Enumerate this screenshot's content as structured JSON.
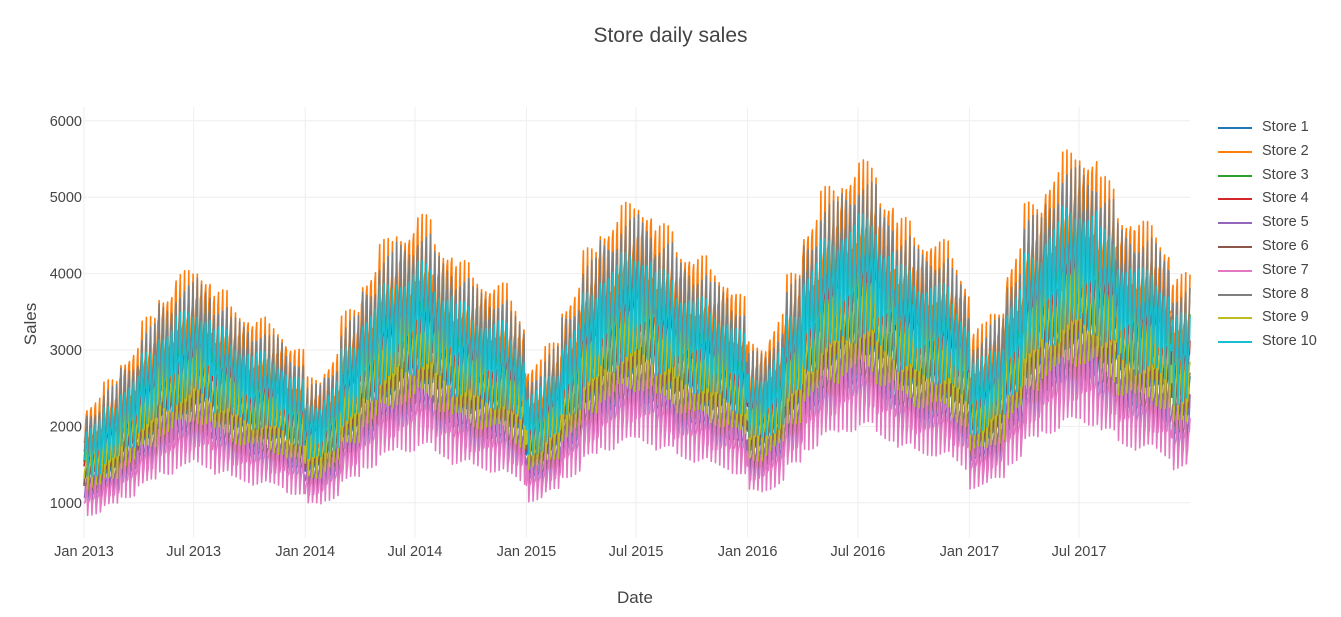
{
  "chart_data": {
    "type": "line",
    "title": "Store daily sales",
    "xlabel": "Date",
    "ylabel": "Sales",
    "xlim": [
      "2013-01-01",
      "2017-12-31"
    ],
    "ylim": [
      540,
      6180
    ],
    "grid": true,
    "legend_position": "right",
    "x_ticks": [
      "2013-01-01",
      "2013-07-01",
      "2014-01-01",
      "2014-07-01",
      "2015-01-01",
      "2015-07-01",
      "2016-01-01",
      "2016-07-01",
      "2017-01-01",
      "2017-07-01"
    ],
    "x_tick_labels": [
      "Jan 2013",
      "Jul 2013",
      "Jan 2014",
      "Jul 2014",
      "Jan 2015",
      "Jul 2015",
      "Jan 2016",
      "Jul 2016",
      "Jan 2017",
      "Jul 2017"
    ],
    "y_ticks": [
      1000,
      2000,
      3000,
      4000,
      5000,
      6000
    ],
    "y_tick_labels": [
      "1000",
      "2000",
      "3000",
      "4000",
      "5000",
      "6000"
    ],
    "series": [
      {
        "name": "Store 1",
        "color": "#1f77b4",
        "level": 0.78
      },
      {
        "name": "Store 2",
        "color": "#ff7f0e",
        "level": 1.11
      },
      {
        "name": "Store 3",
        "color": "#2ca02c",
        "level": 0.99
      },
      {
        "name": "Store 4",
        "color": "#d62728",
        "level": 0.91
      },
      {
        "name": "Store 5",
        "color": "#9467bd",
        "level": 0.67
      },
      {
        "name": "Store 6",
        "color": "#8c564b",
        "level": 0.785
      },
      {
        "name": "Store 7",
        "color": "#e377c2",
        "level": 0.605
      },
      {
        "name": "Store 8",
        "color": "#7f7f7f",
        "level": 1.06
      },
      {
        "name": "Store 9",
        "color": "#bcbd22",
        "level": 0.835
      },
      {
        "name": "Store 10",
        "color": "#17becf",
        "level": 0.965
      }
    ],
    "monthly_base": [
      {
        "month": "2013-01",
        "value": 1680
      },
      {
        "month": "2013-02",
        "value": 1860
      },
      {
        "month": "2013-03",
        "value": 2120
      },
      {
        "month": "2013-04",
        "value": 2430
      },
      {
        "month": "2013-05",
        "value": 2750
      },
      {
        "month": "2013-06",
        "value": 2900
      },
      {
        "month": "2013-07",
        "value": 3010
      },
      {
        "month": "2013-08",
        "value": 2780
      },
      {
        "month": "2013-09",
        "value": 2600
      },
      {
        "month": "2013-10",
        "value": 2500
      },
      {
        "month": "2013-11",
        "value": 2430
      },
      {
        "month": "2013-12",
        "value": 2300
      },
      {
        "month": "2014-01",
        "value": 1910
      },
      {
        "month": "2014-02",
        "value": 2050
      },
      {
        "month": "2014-03",
        "value": 2500
      },
      {
        "month": "2014-04",
        "value": 2900
      },
      {
        "month": "2014-05",
        "value": 3200
      },
      {
        "month": "2014-06",
        "value": 3350
      },
      {
        "month": "2014-07",
        "value": 3500
      },
      {
        "month": "2014-08",
        "value": 3250
      },
      {
        "month": "2014-09",
        "value": 3050
      },
      {
        "month": "2014-10",
        "value": 2900
      },
      {
        "month": "2014-11",
        "value": 2850
      },
      {
        "month": "2014-12",
        "value": 2700
      },
      {
        "month": "2015-01",
        "value": 2050
      },
      {
        "month": "2015-02",
        "value": 2200
      },
      {
        "month": "2015-03",
        "value": 2650
      },
      {
        "month": "2015-04",
        "value": 3100
      },
      {
        "month": "2015-05",
        "value": 3400
      },
      {
        "month": "2015-06",
        "value": 3550
      },
      {
        "month": "2015-07",
        "value": 3650
      },
      {
        "month": "2015-08",
        "value": 3400
      },
      {
        "month": "2015-09",
        "value": 3200
      },
      {
        "month": "2015-10",
        "value": 3100
      },
      {
        "month": "2015-11",
        "value": 2950
      },
      {
        "month": "2015-12",
        "value": 2850
      },
      {
        "month": "2016-01",
        "value": 2250
      },
      {
        "month": "2016-02",
        "value": 2350
      },
      {
        "month": "2016-03",
        "value": 2850
      },
      {
        "month": "2016-04",
        "value": 3400
      },
      {
        "month": "2016-05",
        "value": 3700
      },
      {
        "month": "2016-06",
        "value": 3900
      },
      {
        "month": "2016-07",
        "value": 4000
      },
      {
        "month": "2016-08",
        "value": 3750
      },
      {
        "month": "2016-09",
        "value": 3450
      },
      {
        "month": "2016-10",
        "value": 3300
      },
      {
        "month": "2016-11",
        "value": 3250
      },
      {
        "month": "2016-12",
        "value": 3100
      },
      {
        "month": "2017-01",
        "value": 2400
      },
      {
        "month": "2017-02",
        "value": 2500
      },
      {
        "month": "2017-03",
        "value": 3000
      },
      {
        "month": "2017-04",
        "value": 3550
      },
      {
        "month": "2017-05",
        "value": 3850
      },
      {
        "month": "2017-06",
        "value": 4050
      },
      {
        "month": "2017-07",
        "value": 4150
      },
      {
        "month": "2017-08",
        "value": 3850
      },
      {
        "month": "2017-09",
        "value": 3550
      },
      {
        "month": "2017-10",
        "value": 3400
      },
      {
        "month": "2017-11",
        "value": 3350
      },
      {
        "month": "2017-12",
        "value": 2900
      }
    ]
  }
}
